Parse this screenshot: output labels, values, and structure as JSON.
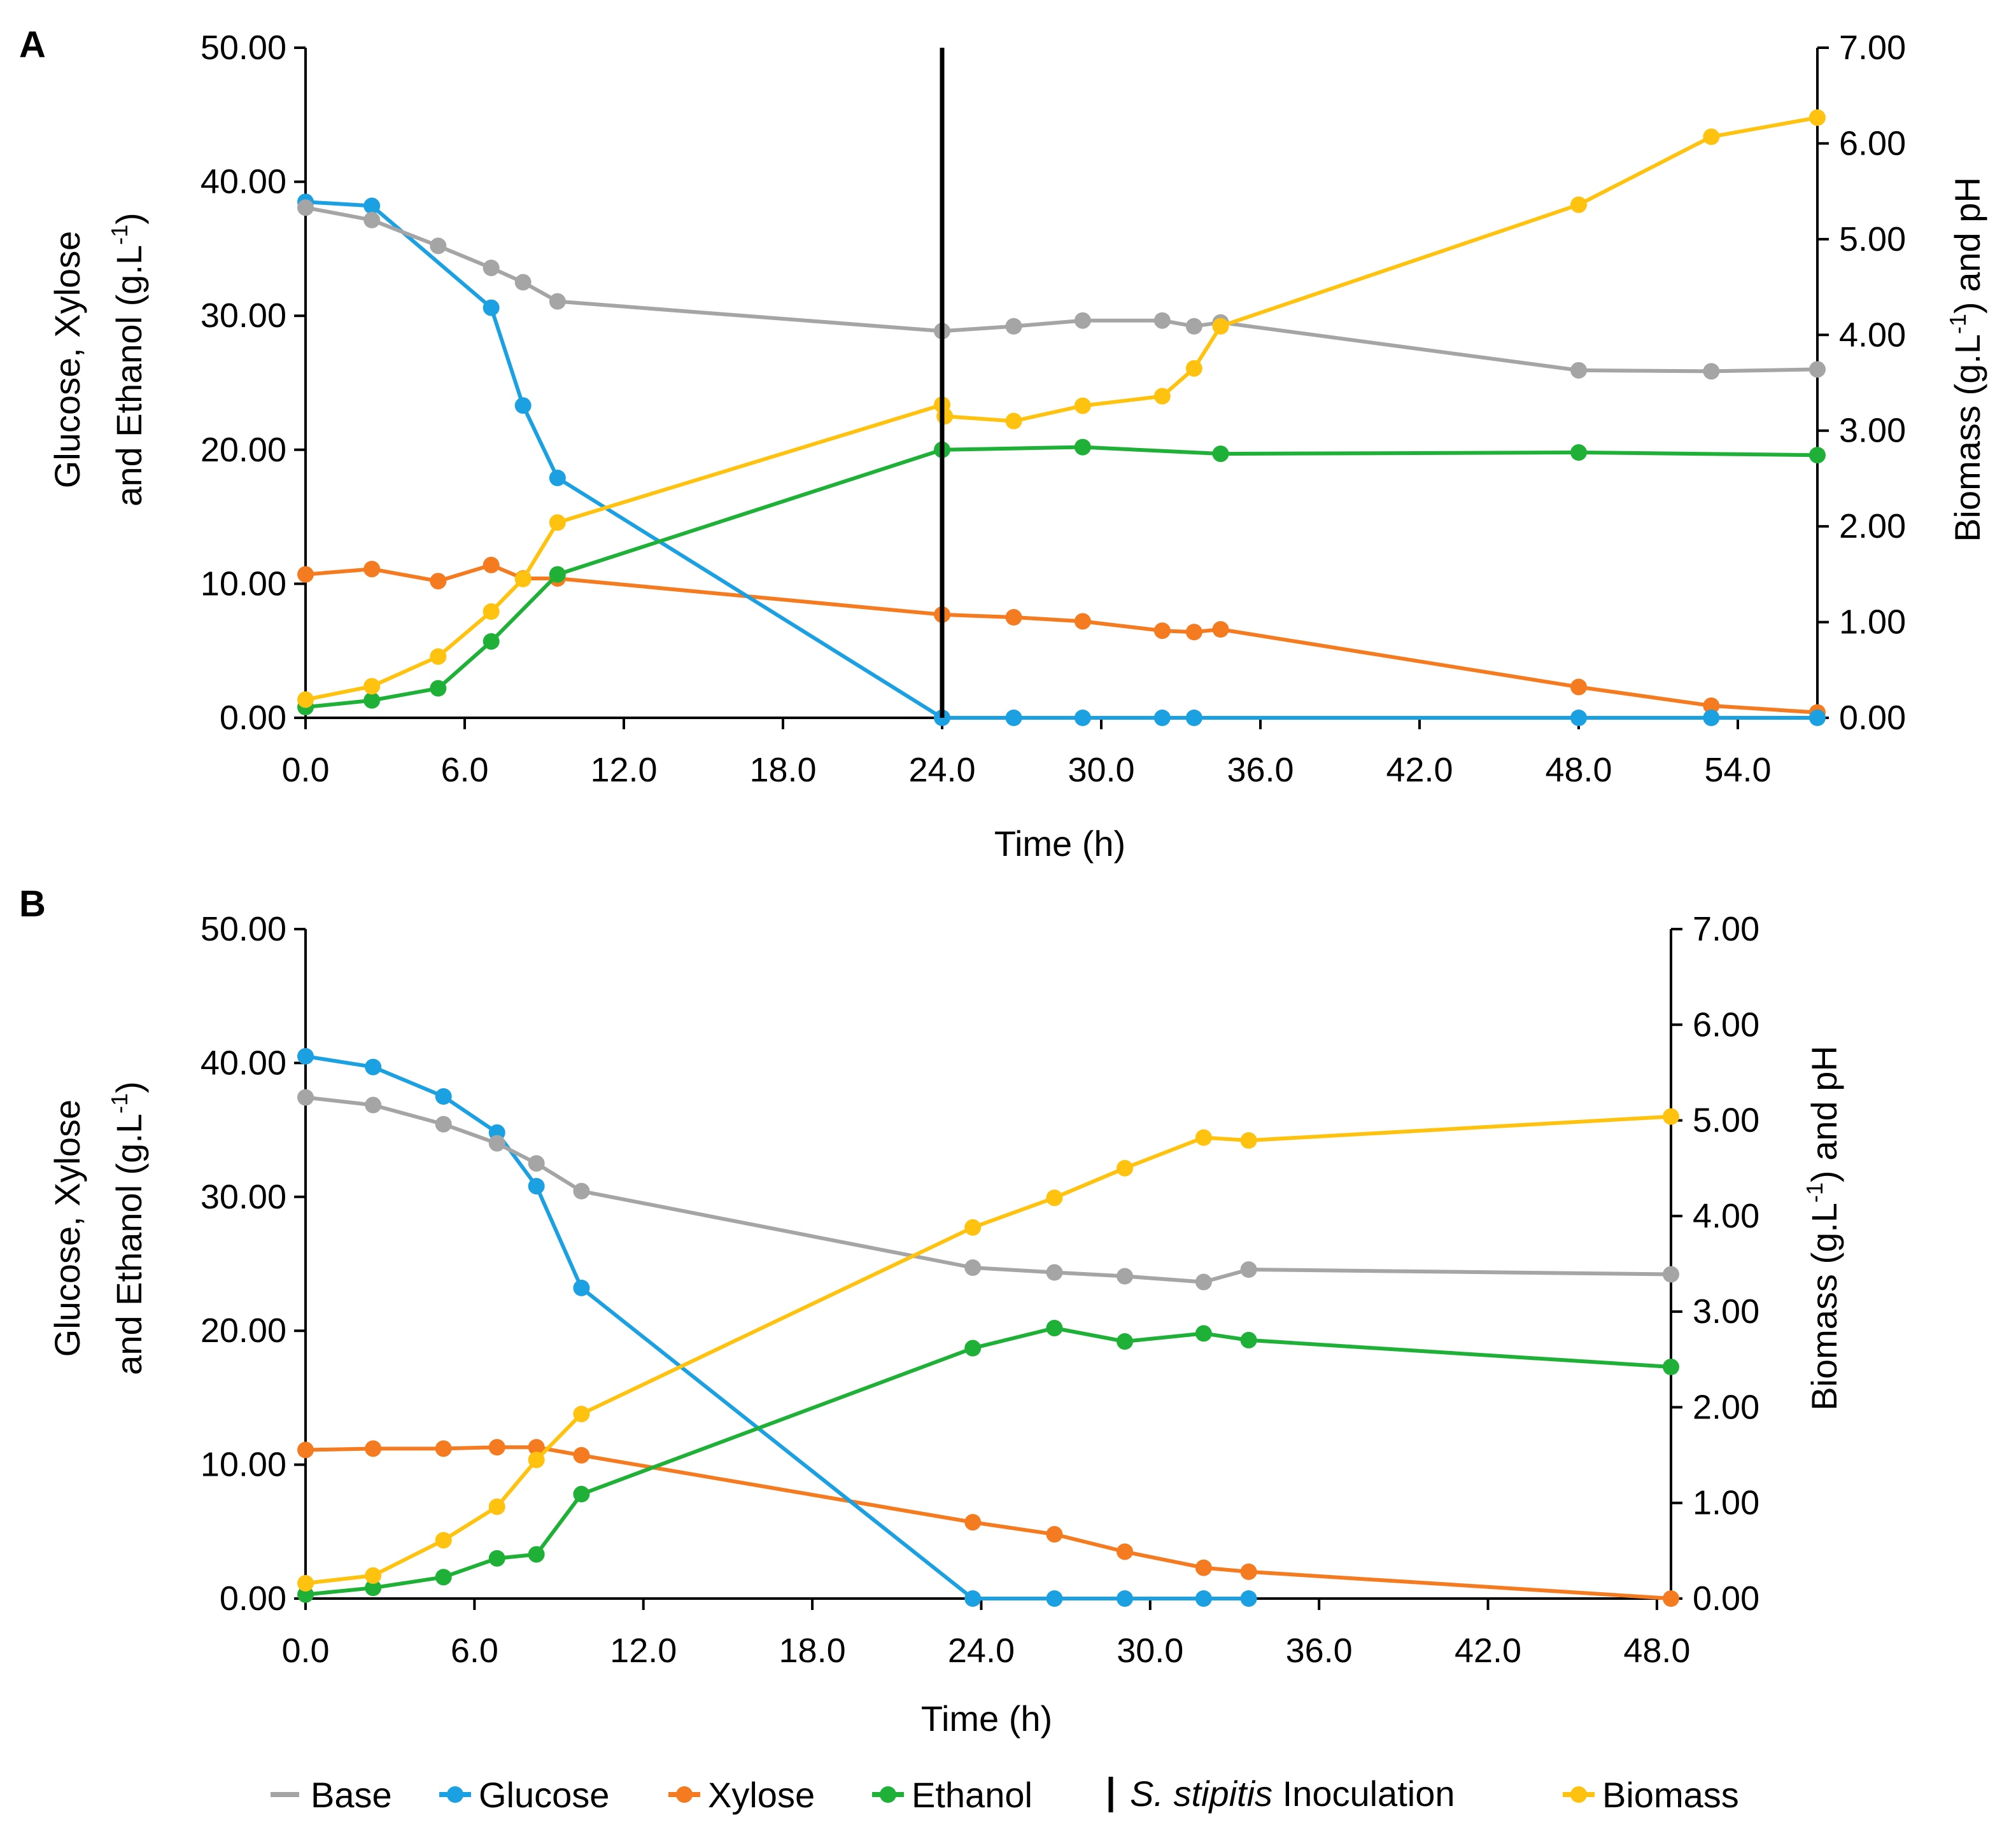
{
  "colors": {
    "Base": "#a5a5a5",
    "Glucose": "#1ba1e2",
    "Xylose": "#f47b20",
    "Ethanol": "#1fb137",
    "Biomass": "#ffc20e",
    "Inoculation": "#000000"
  },
  "legend": {
    "items": [
      {
        "name": "Base",
        "label": "Base"
      },
      {
        "name": "Glucose",
        "label": "Glucose"
      },
      {
        "name": "Xylose",
        "label": "Xylose"
      },
      {
        "name": "Ethanol",
        "label": "Ethanol"
      },
      {
        "name": "Inoculation",
        "label_italic": "S. stipitis",
        "label_rest": " Inoculation"
      },
      {
        "name": "Biomass",
        "label": "Biomass"
      }
    ]
  },
  "chart_data": [
    {
      "type": "line",
      "panel": "A",
      "xlabel": "Time (h)",
      "ylabel_line1": "Glucose, Xylose",
      "ylabel_line2": "and Ethanol (g.L",
      "ylabel_sup": "-1",
      "ylabel_end": ")",
      "y2label": "Biomass (g.L",
      "y2label_sup": "-1",
      "y2label_end": ") and pH",
      "xlim": [
        0,
        57
      ],
      "ylim": [
        0,
        50
      ],
      "y2lim": [
        0,
        7
      ],
      "xticks": [
        "0.0",
        "6.0",
        "12.0",
        "18.0",
        "24.0",
        "30.0",
        "36.0",
        "42.0",
        "48.0",
        "54.0"
      ],
      "yticks": [
        "0.00",
        "10.00",
        "20.00",
        "30.00",
        "40.00",
        "50.00"
      ],
      "y2ticks": [
        "0.00",
        "1.00",
        "2.00",
        "3.00",
        "4.00",
        "5.00",
        "6.00",
        "7.00"
      ],
      "inoculation_x": 24,
      "series": [
        {
          "name": "Glucose",
          "axis": "left",
          "x": [
            0,
            2.5,
            7,
            8.2,
            9.5,
            24,
            26.7,
            29.3,
            32.3,
            33.5,
            48,
            53,
            57
          ],
          "y": [
            38.5,
            38.2,
            30.6,
            23.3,
            17.9,
            0,
            0,
            0,
            0,
            0,
            0,
            0,
            0
          ]
        },
        {
          "name": "Xylose",
          "axis": "left",
          "x": [
            0,
            2.5,
            5,
            7,
            8.2,
            9.5,
            24,
            26.7,
            29.3,
            32.3,
            33.5,
            34.5,
            48,
            53,
            57
          ],
          "y": [
            10.7,
            11.1,
            10.2,
            11.4,
            10.4,
            10.4,
            7.7,
            7.5,
            7.2,
            6.5,
            6.4,
            6.6,
            2.3,
            0.9,
            0.4
          ]
        },
        {
          "name": "Ethanol",
          "axis": "left",
          "x": [
            0,
            2.5,
            5,
            7,
            9.5,
            24,
            29.3,
            34.5,
            48,
            57
          ],
          "y": [
            0.8,
            1.3,
            2.2,
            5.7,
            10.7,
            20.0,
            20.2,
            19.7,
            19.8,
            19.6
          ]
        },
        {
          "name": "Base",
          "axis": "right",
          "x": [
            0,
            2.5,
            5,
            7,
            8.2,
            9.5,
            24,
            26.7,
            29.3,
            32.3,
            33.5,
            34.5,
            48,
            53,
            57
          ],
          "y": [
            5.33,
            5.2,
            4.93,
            4.7,
            4.55,
            4.35,
            4.04,
            4.09,
            4.15,
            4.15,
            4.09,
            4.13,
            3.63,
            3.62,
            3.64
          ]
        },
        {
          "name": "Biomass",
          "axis": "right",
          "x": [
            0,
            2.5,
            5,
            7,
            8.2,
            9.5,
            24,
            24.1,
            26.7,
            29.3,
            32.3,
            33.5,
            34.5,
            48,
            53,
            57
          ],
          "y": [
            0.19,
            0.33,
            0.64,
            1.11,
            1.45,
            2.04,
            3.27,
            3.15,
            3.1,
            3.26,
            3.36,
            3.65,
            4.09,
            5.36,
            6.07,
            6.27
          ]
        }
      ]
    },
    {
      "type": "line",
      "panel": "B",
      "xlabel": "Time (h)",
      "ylabel_line1": "Glucose, Xylose",
      "ylabel_line2": "and Ethanol (g.L",
      "ylabel_sup": "-1",
      "ylabel_end": ")",
      "y2label": "Biomass (g.L",
      "y2label_sup": "-1",
      "y2label_end": ") and pH",
      "xlim": [
        0,
        48.5
      ],
      "ylim": [
        0,
        50
      ],
      "y2lim": [
        0,
        7
      ],
      "xticks": [
        "0.0",
        "6.0",
        "12.0",
        "18.0",
        "24.0",
        "30.0",
        "36.0",
        "42.0",
        "48.0"
      ],
      "yticks": [
        "0.00",
        "10.00",
        "20.00",
        "30.00",
        "40.00",
        "50.00"
      ],
      "y2ticks": [
        "0.00",
        "1.00",
        "2.00",
        "3.00",
        "4.00",
        "5.00",
        "6.00",
        "7.00"
      ],
      "series": [
        {
          "name": "Glucose",
          "axis": "left",
          "x": [
            0,
            2.4,
            4.9,
            6.8,
            8.2,
            9.8,
            23.7,
            26.6,
            29.1,
            31.9,
            33.5
          ],
          "y": [
            40.5,
            39.7,
            37.5,
            34.8,
            30.8,
            23.2,
            0,
            0,
            0,
            0,
            0
          ]
        },
        {
          "name": "Xylose",
          "axis": "left",
          "x": [
            0,
            2.4,
            4.9,
            6.8,
            8.2,
            9.8,
            23.7,
            26.6,
            29.1,
            31.9,
            33.5,
            48.5
          ],
          "y": [
            11.1,
            11.2,
            11.2,
            11.3,
            11.3,
            10.7,
            5.7,
            4.8,
            3.5,
            2.3,
            2.0,
            0.0
          ]
        },
        {
          "name": "Ethanol",
          "axis": "left",
          "x": [
            0,
            2.4,
            4.9,
            6.8,
            8.2,
            9.8,
            23.7,
            26.6,
            29.1,
            31.9,
            33.5,
            48.5
          ],
          "y": [
            0.3,
            0.8,
            1.6,
            3.0,
            3.3,
            7.8,
            18.7,
            20.2,
            19.2,
            19.8,
            19.3,
            17.3
          ]
        },
        {
          "name": "Base",
          "axis": "right",
          "x": [
            0,
            2.4,
            4.9,
            6.8,
            8.2,
            9.8,
            23.7,
            26.6,
            29.1,
            31.9,
            33.5,
            48.5
          ],
          "y": [
            5.24,
            5.16,
            4.96,
            4.76,
            4.55,
            4.26,
            3.46,
            3.41,
            3.37,
            3.31,
            3.44,
            3.39
          ]
        },
        {
          "name": "Biomass",
          "axis": "right",
          "x": [
            0,
            2.4,
            4.9,
            6.8,
            8.2,
            9.8,
            23.7,
            26.6,
            29.1,
            31.9,
            33.5,
            48.5
          ],
          "y": [
            0.16,
            0.24,
            0.61,
            0.96,
            1.45,
            1.93,
            3.88,
            4.19,
            4.5,
            4.82,
            4.79,
            5.04
          ]
        }
      ]
    }
  ]
}
